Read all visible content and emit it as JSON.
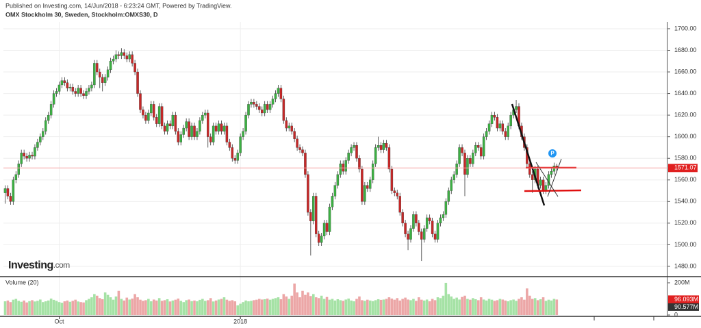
{
  "header": {
    "published": "Published on Investing.com, 14/Jun/2018 - 6:23:24 GMT, Powered by TradingView.",
    "logo": "Investing",
    "logo_suffix": ".com"
  },
  "chart_data": {
    "type": "candlestick",
    "title": "OMX Stockholm 30, Sweden, Stockholm:OMXS30, D",
    "up_color": "#3cb043",
    "down_color": "#c62828",
    "wick_color": "#333333",
    "open": [
      1548,
      1552,
      1545,
      1540,
      1560,
      1565,
      1575,
      1585,
      1582,
      1580,
      1583,
      1582,
      1590,
      1595,
      1600,
      1605,
      1615,
      1620,
      1630,
      1640,
      1642,
      1648,
      1652,
      1650,
      1645,
      1646,
      1642,
      1640,
      1645,
      1640,
      1638,
      1642,
      1645,
      1648,
      1668,
      1660,
      1655,
      1650,
      1655,
      1662,
      1670,
      1672,
      1676,
      1675,
      1678,
      1675,
      1672,
      1676,
      1668,
      1660,
      1640,
      1625,
      1620,
      1615,
      1622,
      1630,
      1618,
      1612,
      1628,
      1610,
      1605,
      1612,
      1610,
      1620,
      1605,
      1595,
      1602,
      1608,
      1614,
      1600,
      1610,
      1600,
      1605,
      1615,
      1620,
      1622,
      1600,
      1595,
      1610,
      1605,
      1612,
      1605,
      1610,
      1595,
      1590,
      1580,
      1578,
      1585,
      1600,
      1605,
      1620,
      1630,
      1632,
      1630,
      1628,
      1625,
      1622,
      1630,
      1625,
      1630,
      1635,
      1640,
      1645,
      1635,
      1615,
      1608,
      1610,
      1605,
      1598,
      1590,
      1588,
      1585,
      1565,
      1530,
      1522,
      1545,
      1510,
      1502,
      1508,
      1520,
      1512,
      1535,
      1545,
      1555,
      1565,
      1575,
      1568,
      1578,
      1585,
      1590,
      1592,
      1580,
      1570,
      1540,
      1555,
      1552,
      1560,
      1575,
      1590,
      1592,
      1588,
      1594,
      1590,
      1570,
      1550,
      1548,
      1545,
      1530,
      1520,
      1510,
      1505,
      1515,
      1528,
      1520,
      1512,
      1505,
      1515,
      1525,
      1522,
      1510,
      1505,
      1520,
      1525,
      1528,
      1540,
      1550,
      1560,
      1565,
      1575,
      1590,
      1585,
      1565,
      1580,
      1575,
      1585,
      1592,
      1590,
      1582,
      1600,
      1605,
      1612,
      1620,
      1618,
      1608,
      1612,
      1605,
      1600,
      1610,
      1620,
      1625,
      1628,
      1610,
      1600,
      1590,
      1575,
      1565,
      1560,
      1570,
      1555,
      1560,
      1550,
      1555,
      1565,
      1568,
      1573
    ],
    "high": [
      1555,
      1555,
      1548,
      1563,
      1568,
      1578,
      1588,
      1588,
      1585,
      1586,
      1586,
      1593,
      1598,
      1603,
      1608,
      1618,
      1623,
      1633,
      1643,
      1645,
      1651,
      1655,
      1655,
      1653,
      1649,
      1649,
      1645,
      1648,
      1648,
      1643,
      1645,
      1648,
      1651,
      1671,
      1671,
      1663,
      1658,
      1658,
      1665,
      1673,
      1675,
      1680,
      1679,
      1682,
      1681,
      1678,
      1679,
      1679,
      1671,
      1663,
      1643,
      1628,
      1623,
      1625,
      1633,
      1633,
      1621,
      1631,
      1631,
      1613,
      1615,
      1615,
      1623,
      1623,
      1608,
      1605,
      1611,
      1617,
      1617,
      1613,
      1613,
      1608,
      1618,
      1623,
      1625,
      1625,
      1603,
      1613,
      1613,
      1615,
      1615,
      1613,
      1613,
      1598,
      1593,
      1583,
      1588,
      1603,
      1608,
      1623,
      1633,
      1635,
      1635,
      1633,
      1631,
      1628,
      1633,
      1633,
      1633,
      1638,
      1643,
      1648,
      1648,
      1638,
      1618,
      1613,
      1613,
      1608,
      1601,
      1593,
      1591,
      1588,
      1568,
      1533,
      1548,
      1548,
      1513,
      1511,
      1523,
      1523,
      1538,
      1548,
      1558,
      1568,
      1578,
      1578,
      1581,
      1588,
      1593,
      1595,
      1595,
      1583,
      1573,
      1558,
      1558,
      1563,
      1578,
      1593,
      1600,
      1595,
      1597,
      1597,
      1593,
      1573,
      1553,
      1551,
      1548,
      1533,
      1523,
      1513,
      1518,
      1531,
      1531,
      1523,
      1515,
      1518,
      1528,
      1528,
      1525,
      1513,
      1523,
      1528,
      1531,
      1543,
      1553,
      1563,
      1568,
      1578,
      1593,
      1593,
      1588,
      1583,
      1583,
      1588,
      1595,
      1595,
      1593,
      1603,
      1608,
      1615,
      1623,
      1623,
      1621,
      1615,
      1615,
      1608,
      1613,
      1623,
      1628,
      1634,
      1631,
      1613,
      1603,
      1593,
      1578,
      1568,
      1573,
      1573,
      1563,
      1563,
      1558,
      1568,
      1571,
      1576,
      1575
    ],
    "low": [
      1538,
      1542,
      1537,
      1537,
      1557,
      1562,
      1572,
      1579,
      1577,
      1577,
      1579,
      1579,
      1587,
      1592,
      1597,
      1602,
      1612,
      1617,
      1627,
      1637,
      1639,
      1645,
      1647,
      1642,
      1642,
      1639,
      1637,
      1637,
      1637,
      1635,
      1635,
      1639,
      1642,
      1645,
      1657,
      1645,
      1642,
      1647,
      1652,
      1659,
      1667,
      1669,
      1672,
      1672,
      1672,
      1669,
      1669,
      1665,
      1657,
      1637,
      1622,
      1617,
      1612,
      1612,
      1619,
      1615,
      1609,
      1609,
      1607,
      1602,
      1602,
      1607,
      1607,
      1602,
      1592,
      1592,
      1599,
      1605,
      1597,
      1597,
      1597,
      1597,
      1602,
      1612,
      1617,
      1590,
      1592,
      1592,
      1602,
      1602,
      1602,
      1602,
      1592,
      1587,
      1577,
      1575,
      1575,
      1582,
      1597,
      1602,
      1617,
      1627,
      1627,
      1625,
      1622,
      1619,
      1619,
      1622,
      1622,
      1627,
      1632,
      1637,
      1632,
      1612,
      1605,
      1605,
      1602,
      1595,
      1587,
      1585,
      1582,
      1562,
      1527,
      1490,
      1519,
      1507,
      1499,
      1499,
      1505,
      1509,
      1509,
      1532,
      1542,
      1552,
      1562,
      1565,
      1565,
      1575,
      1582,
      1587,
      1577,
      1567,
      1537,
      1537,
      1549,
      1549,
      1557,
      1572,
      1587,
      1585,
      1585,
      1587,
      1567,
      1547,
      1545,
      1542,
      1527,
      1517,
      1507,
      1495,
      1502,
      1512,
      1517,
      1509,
      1485,
      1502,
      1512,
      1519,
      1507,
      1502,
      1502,
      1517,
      1522,
      1525,
      1537,
      1547,
      1557,
      1562,
      1572,
      1582,
      1545,
      1562,
      1572,
      1572,
      1582,
      1587,
      1579,
      1579,
      1597,
      1602,
      1609,
      1615,
      1605,
      1605,
      1602,
      1597,
      1597,
      1607,
      1617,
      1622,
      1607,
      1597,
      1587,
      1572,
      1562,
      1548,
      1557,
      1552,
      1552,
      1547,
      1547,
      1552,
      1562,
      1565,
      1568
    ],
    "close": [
      1552,
      1545,
      1540,
      1560,
      1565,
      1575,
      1585,
      1582,
      1580,
      1583,
      1582,
      1590,
      1595,
      1600,
      1605,
      1615,
      1620,
      1630,
      1640,
      1642,
      1648,
      1652,
      1650,
      1645,
      1646,
      1642,
      1640,
      1645,
      1640,
      1638,
      1642,
      1645,
      1648,
      1668,
      1660,
      1655,
      1650,
      1655,
      1662,
      1670,
      1672,
      1676,
      1675,
      1678,
      1675,
      1672,
      1676,
      1668,
      1660,
      1640,
      1625,
      1620,
      1615,
      1622,
      1630,
      1618,
      1612,
      1628,
      1610,
      1605,
      1612,
      1610,
      1620,
      1605,
      1595,
      1602,
      1608,
      1614,
      1600,
      1610,
      1600,
      1605,
      1615,
      1620,
      1622,
      1600,
      1595,
      1610,
      1605,
      1612,
      1605,
      1610,
      1595,
      1590,
      1580,
      1578,
      1585,
      1600,
      1605,
      1620,
      1630,
      1632,
      1630,
      1628,
      1625,
      1622,
      1630,
      1625,
      1630,
      1635,
      1640,
      1645,
      1635,
      1615,
      1608,
      1610,
      1605,
      1598,
      1590,
      1588,
      1585,
      1565,
      1530,
      1522,
      1545,
      1510,
      1502,
      1508,
      1520,
      1512,
      1535,
      1545,
      1555,
      1565,
      1575,
      1568,
      1578,
      1585,
      1590,
      1592,
      1580,
      1570,
      1540,
      1555,
      1552,
      1560,
      1575,
      1590,
      1592,
      1588,
      1594,
      1590,
      1570,
      1550,
      1548,
      1545,
      1530,
      1520,
      1510,
      1505,
      1515,
      1528,
      1520,
      1512,
      1505,
      1515,
      1525,
      1522,
      1510,
      1505,
      1520,
      1525,
      1528,
      1540,
      1550,
      1560,
      1565,
      1575,
      1590,
      1585,
      1565,
      1580,
      1575,
      1585,
      1592,
      1590,
      1582,
      1600,
      1605,
      1612,
      1620,
      1618,
      1608,
      1612,
      1605,
      1600,
      1610,
      1620,
      1625,
      1628,
      1610,
      1600,
      1590,
      1575,
      1565,
      1560,
      1570,
      1555,
      1560,
      1550,
      1555,
      1565,
      1568,
      1573,
      1571.07
    ],
    "last_price_label": "1571.07",
    "last_price_color": "#e02020",
    "ylim": [
      1471.1,
      1706.3
    ],
    "yticks": [
      {
        "value": 1480,
        "label": "1480.00"
      },
      {
        "value": 1500,
        "label": "1500.00"
      },
      {
        "value": 1520,
        "label": "1520.00"
      },
      {
        "value": 1540,
        "label": "1540.00"
      },
      {
        "value": 1560,
        "label": "1560.00"
      },
      {
        "value": 1580,
        "label": "1580.00"
      },
      {
        "value": 1600,
        "label": "1600.00"
      },
      {
        "value": 1620,
        "label": "1620.00"
      },
      {
        "value": 1640,
        "label": "1640.00"
      },
      {
        "value": 1660,
        "label": "1660.00"
      },
      {
        "value": 1680,
        "label": "1680.00"
      },
      {
        "value": 1700,
        "label": "1700.00"
      }
    ],
    "xticks": [
      {
        "value": 20,
        "label": "Oct"
      },
      {
        "value": 87,
        "label": "2018"
      }
    ],
    "grid": true,
    "marker": "P",
    "volume": {
      "name": "Volume (20)",
      "up_color": "#a5e2a5",
      "down_color": "#eca6a6",
      "values": [
        85,
        90,
        80,
        95,
        100,
        88,
        82,
        90,
        78,
        86,
        92,
        84,
        88,
        96,
        80,
        85,
        90,
        102,
        94,
        88,
        80,
        76,
        85,
        90,
        82,
        88,
        95,
        84,
        80,
        78,
        92,
        100,
        110,
        130,
        120,
        105,
        98,
        140,
        125,
        110,
        95,
        115,
        150,
        100,
        90,
        108,
        96,
        102,
        130,
        110,
        95,
        88,
        92,
        100,
        85,
        96,
        90,
        105,
        88,
        92,
        98,
        84,
        90,
        95,
        102,
        88,
        80,
        92,
        96,
        86,
        90,
        85,
        94,
        100,
        88,
        92,
        105,
        84,
        90,
        96,
        100,
        110,
        95,
        88,
        92,
        85,
        60,
        70,
        80,
        90,
        85,
        88,
        92,
        95,
        100,
        96,
        98,
        102,
        95,
        100,
        105,
        110,
        98,
        130,
        115,
        100,
        120,
        195,
        140,
        110,
        150,
        125,
        140,
        118,
        130,
        110,
        105,
        120,
        100,
        112,
        95,
        100,
        90,
        98,
        92,
        88,
        96,
        102,
        90,
        85,
        100,
        115,
        92,
        88,
        95,
        90,
        86,
        92,
        98,
        94,
        96,
        100,
        110,
        102,
        95,
        105,
        90,
        100,
        108,
        96,
        92,
        100,
        88,
        110,
        95,
        90,
        96,
        85,
        100,
        92,
        110,
        105,
        120,
        200,
        130,
        115,
        100,
        108,
        96,
        112,
        120,
        100,
        95,
        105,
        98,
        92,
        110,
        96,
        90,
        100,
        95,
        88,
        92,
        100,
        96,
        90,
        85,
        92,
        96,
        88,
        100,
        110,
        95,
        165,
        120,
        100,
        105,
        92,
        98,
        110,
        88,
        95,
        90,
        100,
        96.093
      ],
      "last_label": "96.093M",
      "ma_last": {
        "value": 90.577,
        "label": "90.577M"
      },
      "y2lim": [
        0,
        234
      ],
      "y2ticks": [
        {
          "value": 0,
          "label": "0"
        },
        {
          "value": 200,
          "label": "200M"
        }
      ]
    }
  }
}
